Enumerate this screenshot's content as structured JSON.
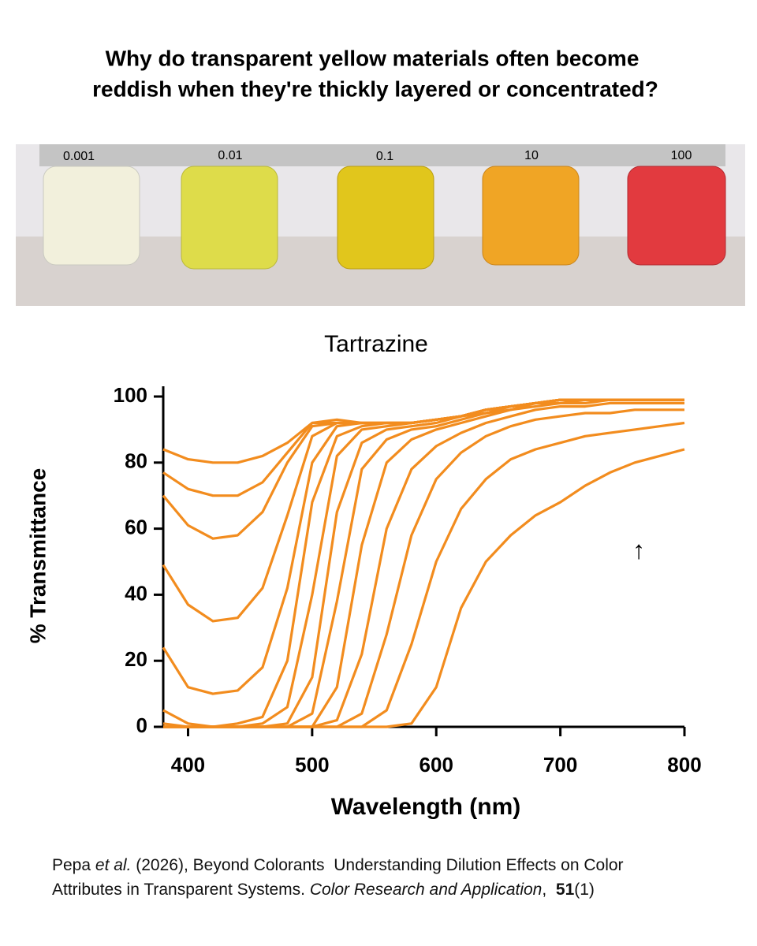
{
  "header": {
    "title_lines": [
      "Why do transparent yellow materials often become",
      "reddish when they're thickly layered or concentrated?"
    ]
  },
  "photo": {
    "labels": [
      "0.001",
      "0.01",
      "0.1",
      "10",
      "100"
    ]
  },
  "chart_data": {
    "type": "line",
    "title": "Tartrazine",
    "x_label": "Wavelength (nm)",
    "y_label": "% Transmittance",
    "annotation": "↑",
    "x": [
      380,
      400,
      420,
      440,
      460,
      480,
      500,
      520,
      540,
      560,
      580,
      600,
      620,
      640,
      660,
      680,
      700,
      720,
      740,
      760,
      780,
      800
    ],
    "xlim": [
      380,
      800
    ],
    "xticks": [
      400,
      500,
      600,
      700,
      800
    ],
    "ylim": [
      0,
      100
    ],
    "yticks": [
      0,
      20,
      40,
      60,
      80,
      100
    ],
    "series": [
      {
        "color": "#f28c1e",
        "values": [
          84,
          81,
          80,
          80,
          82,
          86,
          92,
          93,
          92,
          92,
          92,
          93,
          94,
          96,
          97,
          98,
          99,
          99,
          99,
          99,
          99,
          99
        ]
      },
      {
        "color": "#f28c1e",
        "values": [
          77,
          72,
          70,
          70,
          74,
          83,
          92,
          92,
          92,
          92,
          92,
          93,
          94,
          96,
          97,
          98,
          99,
          99,
          99,
          99,
          99,
          99
        ]
      },
      {
        "color": "#f28c1e",
        "values": [
          70,
          61,
          57,
          58,
          65,
          80,
          91,
          92,
          92,
          92,
          92,
          93,
          94,
          96,
          97,
          98,
          99,
          99,
          99,
          99,
          99,
          99
        ]
      },
      {
        "color": "#f28c1e",
        "values": [
          49,
          37,
          32,
          33,
          42,
          64,
          88,
          92,
          92,
          92,
          92,
          93,
          94,
          96,
          97,
          98,
          99,
          99,
          99,
          99,
          99,
          99
        ]
      },
      {
        "color": "#f28c1e",
        "values": [
          24,
          12,
          10,
          11,
          18,
          42,
          80,
          91,
          92,
          92,
          92,
          93,
          94,
          96,
          97,
          98,
          99,
          99,
          99,
          99,
          99,
          99
        ]
      },
      {
        "color": "#f28c1e",
        "values": [
          5,
          1,
          0,
          1,
          3,
          20,
          68,
          88,
          91,
          92,
          92,
          93,
          94,
          96,
          97,
          98,
          99,
          99,
          99,
          99,
          99,
          99
        ]
      },
      {
        "color": "#f28c1e",
        "values": [
          1,
          0,
          0,
          0,
          1,
          6,
          40,
          82,
          90,
          91,
          92,
          93,
          94,
          96,
          97,
          98,
          99,
          99,
          99,
          99,
          99,
          99
        ]
      },
      {
        "color": "#f28c1e",
        "values": [
          0,
          0,
          0,
          0,
          0,
          1,
          15,
          65,
          86,
          90,
          91,
          92,
          94,
          95,
          97,
          98,
          99,
          99,
          99,
          99,
          99,
          99
        ]
      },
      {
        "color": "#f28c1e",
        "values": [
          0,
          0,
          0,
          0,
          0,
          0,
          4,
          38,
          78,
          87,
          90,
          91,
          93,
          95,
          96,
          98,
          98,
          99,
          99,
          99,
          99,
          99
        ]
      },
      {
        "color": "#f28c1e",
        "values": [
          0,
          0,
          0,
          0,
          0,
          0,
          0,
          12,
          55,
          80,
          87,
          90,
          92,
          94,
          96,
          97,
          98,
          98,
          99,
          99,
          99,
          99
        ]
      },
      {
        "color": "#f28c1e",
        "values": [
          0,
          0,
          0,
          0,
          0,
          0,
          0,
          2,
          22,
          60,
          78,
          85,
          89,
          92,
          94,
          96,
          97,
          97,
          98,
          98,
          98,
          98
        ]
      },
      {
        "color": "#f28c1e",
        "values": [
          0,
          0,
          0,
          0,
          0,
          0,
          0,
          0,
          4,
          28,
          58,
          75,
          83,
          88,
          91,
          93,
          94,
          95,
          95,
          96,
          96,
          96
        ]
      },
      {
        "color": "#f28c1e",
        "values": [
          0,
          0,
          0,
          0,
          0,
          0,
          0,
          0,
          0,
          5,
          25,
          50,
          66,
          75,
          81,
          84,
          86,
          88,
          89,
          90,
          91,
          92
        ]
      },
      {
        "color": "#f28c1e",
        "values": [
          0,
          0,
          0,
          0,
          0,
          0,
          0,
          0,
          0,
          0,
          1,
          12,
          36,
          50,
          58,
          64,
          68,
          73,
          77,
          80,
          82,
          84
        ]
      }
    ]
  },
  "citation": {
    "parts": [
      "Pepa ",
      "et al.",
      " (2026), Beyond Colorants  Understanding Dilution Effects on Color",
      "Attributes in Transparent Systems. ",
      "Color Research and Application",
      ",  ",
      "51",
      "(1)"
    ]
  }
}
